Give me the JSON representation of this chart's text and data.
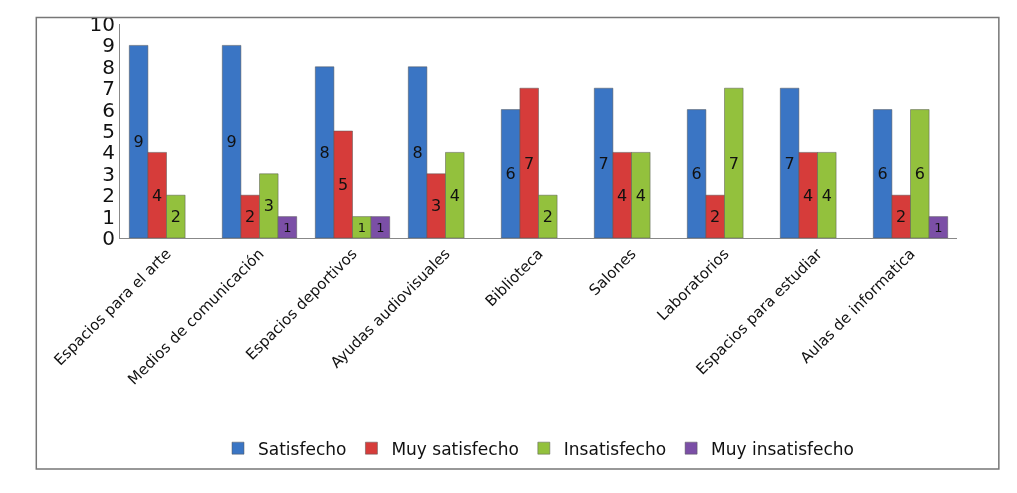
{
  "chart_data": {
    "type": "bar",
    "categories": [
      "Espacios para el arte",
      "Medios de comunicación",
      "Espacios deportivos",
      "Ayudas audiovisuales",
      "Biblioteca",
      "Salones",
      "Laboratorios",
      "Espacios para estudiar",
      "Aulas de informatica"
    ],
    "series": [
      {
        "name": "Satisfecho",
        "color": "#3a75c4",
        "values": [
          9,
          9,
          8,
          8,
          6,
          7,
          6,
          7,
          6
        ]
      },
      {
        "name": "Muy satisfecho",
        "color": "#d63c3a",
        "values": [
          4,
          2,
          5,
          3,
          7,
          4,
          2,
          4,
          2
        ]
      },
      {
        "name": "Insatisfecho",
        "color": "#93c13d",
        "values": [
          2,
          3,
          1,
          4,
          2,
          4,
          7,
          4,
          6
        ]
      },
      {
        "name": "Muy insatisfecho",
        "color": "#7b4fa6",
        "values": [
          null,
          1,
          1,
          null,
          null,
          null,
          null,
          null,
          1
        ]
      }
    ],
    "ylim": [
      0,
      10
    ],
    "yticks": [
      0,
      1,
      2,
      3,
      4,
      5,
      6,
      7,
      8,
      9,
      10
    ],
    "legend": "bottom",
    "data_labels": true
  }
}
